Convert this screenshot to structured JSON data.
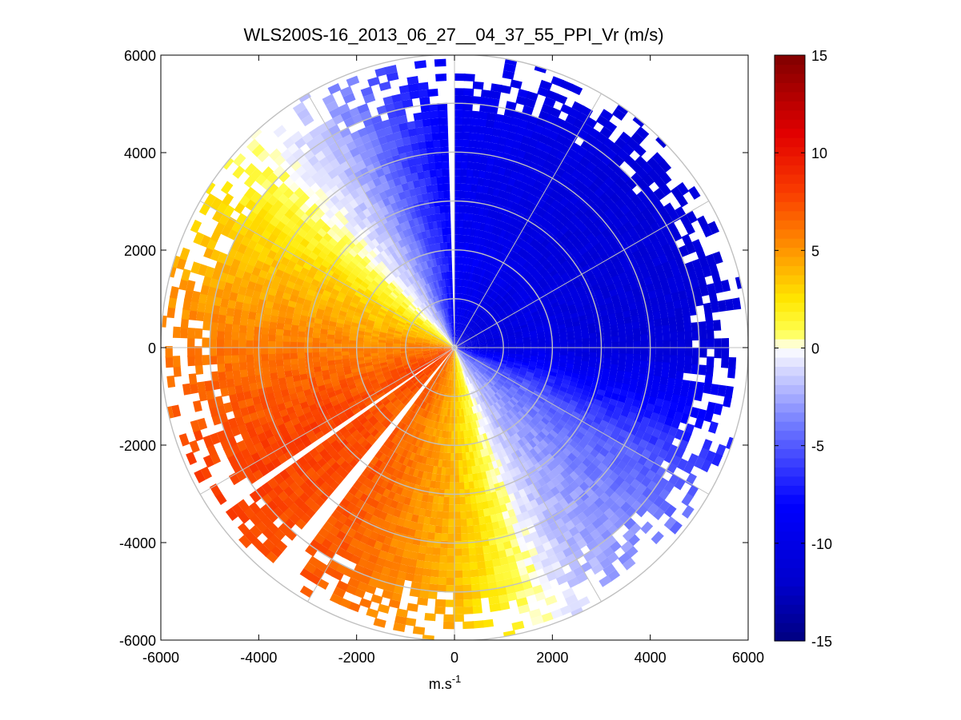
{
  "chart_data": {
    "type": "heatmap",
    "subtype": "polar-ppi",
    "title": "WLS200S-16_2013_06_27__04_37_55_PPI_Vr (m/s)",
    "xlabel": "m.s",
    "xlabel_superscript": "-1",
    "ylabel": "",
    "xlim": [
      -6000,
      6000
    ],
    "ylim": [
      -6000,
      6000
    ],
    "x_ticks": [
      -6000,
      -4000,
      -2000,
      0,
      2000,
      4000,
      6000
    ],
    "x_tick_labels": [
      "-6000",
      "-4000",
      "-2000",
      "0",
      "2000",
      "4000",
      "6000"
    ],
    "y_ticks": [
      6000,
      4000,
      2000,
      0,
      -2000,
      -4000,
      -6000
    ],
    "y_tick_labels": [
      "6000",
      "4000",
      "2000",
      "0",
      "-2000",
      "-4000",
      "-6000"
    ],
    "range_rings": [
      1000,
      2000,
      3000,
      4000,
      5000,
      6000
    ],
    "spoke_angles_deg": [
      0,
      30,
      60,
      90,
      120,
      150,
      180,
      210,
      240,
      270,
      300,
      330
    ],
    "max_range": 6000,
    "colorbar": {
      "min": -15,
      "max": 15,
      "ticks": [
        15,
        10,
        5,
        0,
        -5,
        -10,
        -15
      ],
      "tick_labels": [
        "15",
        "10",
        "5",
        "0",
        "-5",
        "-10",
        "-15"
      ],
      "colormap": "blue-white-yellow-red"
    },
    "velocity_field": {
      "description_points_azimuth_deg": [
        0,
        45,
        90,
        120,
        150,
        180,
        210,
        240,
        270,
        300,
        330,
        360
      ],
      "peak_velocity_ms": [
        -9,
        -11,
        -11,
        -5,
        -2,
        4,
        7,
        8,
        6,
        3,
        -2,
        -9
      ],
      "zero_crossing_azimuths_deg": [
        140,
        305
      ],
      "data_gaps_azimuth_deg": [
        [
          357,
          360
        ],
        [
          216,
          219
        ],
        [
          234,
          236
        ]
      ]
    }
  }
}
